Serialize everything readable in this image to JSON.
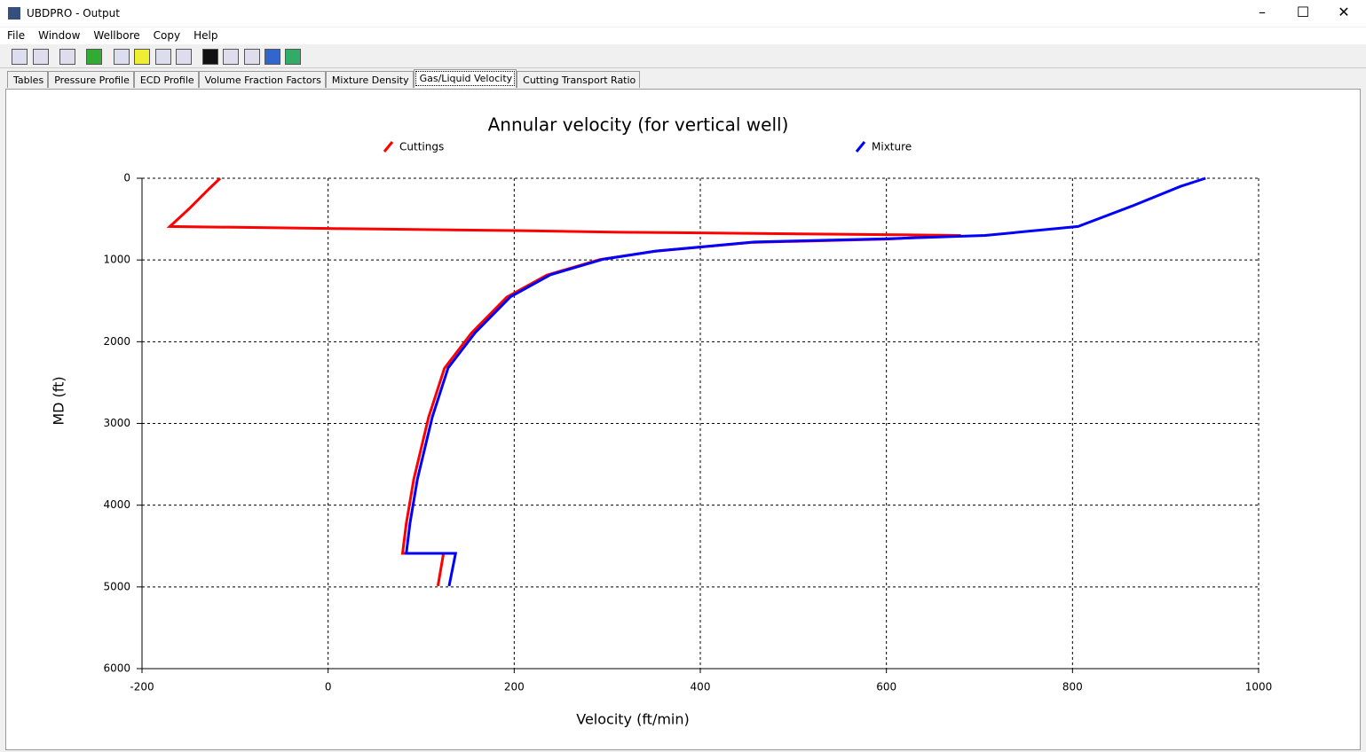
{
  "window": {
    "title": "UBDPRO - Output"
  },
  "menu": [
    "File",
    "Window",
    "Wellbore",
    "Copy",
    "Help"
  ],
  "tabs": [
    "Tables",
    "Pressure Profile",
    "ECD Profile",
    "Volume Fraction Factors",
    "Mixture Density",
    "Gas/Liquid Velocity",
    "Cutting Transport Ratio"
  ],
  "active_tab": 5,
  "chart_data": {
    "type": "line",
    "title": "Annular velocity (for vertical well)",
    "x_label": "Velocity (ft/min)",
    "y_label": "MD (ft)",
    "xlim": [
      -200,
      1000
    ],
    "ylim": [
      0,
      6000
    ],
    "y_inverted": true,
    "xticks": [
      -200,
      0,
      200,
      400,
      600,
      800,
      1000
    ],
    "yticks": [
      0,
      1000,
      2000,
      3000,
      4000,
      5000,
      6000
    ],
    "grid": true,
    "series": [
      {
        "name": "Cuttings",
        "color": "#ff0000",
        "x": [
          -116,
          -128,
          -150,
          -170,
          0,
          200,
          315,
          600,
          680,
          600,
          455,
          350,
          292,
          235,
          192,
          154,
          125,
          108,
          92,
          84,
          80,
          124,
          118
        ],
        "values": [
          0,
          130,
          380,
          590,
          615,
          640,
          660,
          690,
          700,
          745,
          785,
          895,
          995,
          1185,
          1455,
          1895,
          2325,
          2925,
          3685,
          4225,
          4590,
          4590,
          4990
        ]
      },
      {
        "name": "Mixture",
        "color": "#0000ff",
        "x": [
          943,
          916,
          864,
          806,
          706,
          601,
          458,
          353,
          296,
          239,
          196,
          158,
          129,
          112,
          96,
          88,
          84,
          137,
          130
        ],
        "values": [
          0,
          100,
          340,
          590,
          700,
          740,
          780,
          890,
          990,
          1180,
          1450,
          1890,
          2320,
          2920,
          3680,
          4220,
          4590,
          4590,
          4990
        ]
      }
    ]
  }
}
